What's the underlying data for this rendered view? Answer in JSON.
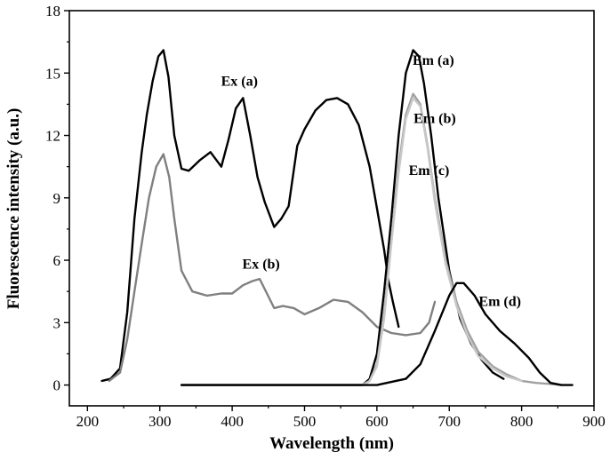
{
  "chart_data": {
    "type": "line",
    "xlabel": "Wavelength (nm)",
    "ylabel": "Fluorescence intensity (a.u.)",
    "xlim": [
      175,
      900
    ],
    "ylim": [
      -1,
      18
    ],
    "xticks": [
      "200",
      "300",
      "400",
      "500",
      "600",
      "700",
      "800",
      "900"
    ],
    "yticks": [
      "0",
      "3",
      "6",
      "9",
      "12",
      "15",
      "18"
    ],
    "grid": false,
    "legend": "none",
    "annotations": [
      {
        "id": "ex-a",
        "text": "Ex (a)",
        "x": 410,
        "y": 14.4
      },
      {
        "id": "ex-b",
        "text": "Ex (b)",
        "x": 440,
        "y": 5.6
      },
      {
        "id": "em-a",
        "text": "Em (a)",
        "x": 678,
        "y": 15.4
      },
      {
        "id": "em-b",
        "text": "Em (b)",
        "x": 680,
        "y": 12.6
      },
      {
        "id": "em-c",
        "text": "Em (c)",
        "x": 672,
        "y": 10.1
      },
      {
        "id": "em-d",
        "text": "Em (d)",
        "x": 770,
        "y": 3.8
      }
    ],
    "series": [
      {
        "name": "Ex (a)",
        "color": "#000000",
        "x": [
          220,
          232,
          245,
          255,
          265,
          275,
          282,
          290,
          298,
          305,
          312,
          320,
          330,
          340,
          355,
          370,
          385,
          395,
          405,
          415,
          425,
          435,
          445,
          458,
          468,
          478,
          490,
          500,
          515,
          530,
          545,
          560,
          575,
          590,
          600,
          610,
          616,
          622,
          630
        ],
        "y": [
          0.2,
          0.3,
          0.8,
          3.5,
          8.0,
          11.2,
          13.0,
          14.6,
          15.8,
          16.1,
          14.8,
          12.0,
          10.4,
          10.3,
          10.8,
          11.2,
          10.5,
          11.8,
          13.3,
          13.8,
          12.0,
          10.0,
          8.8,
          7.6,
          8.0,
          8.6,
          11.5,
          12.3,
          13.2,
          13.7,
          13.8,
          13.5,
          12.5,
          10.5,
          8.5,
          6.5,
          5.0,
          4.0,
          2.8
        ]
      },
      {
        "name": "Ex (b)",
        "color": "#808080",
        "x": [
          230,
          245,
          255,
          265,
          275,
          285,
          295,
          305,
          313,
          320,
          330,
          345,
          365,
          385,
          400,
          415,
          428,
          438,
          448,
          458,
          470,
          485,
          500,
          520,
          540,
          560,
          580,
          600,
          620,
          640,
          660,
          672,
          680
        ],
        "y": [
          0.2,
          0.6,
          2.2,
          4.5,
          6.8,
          9.0,
          10.5,
          11.1,
          10.0,
          8.0,
          5.5,
          4.5,
          4.3,
          4.4,
          4.4,
          4.8,
          5.0,
          5.1,
          4.4,
          3.7,
          3.8,
          3.7,
          3.4,
          3.7,
          4.1,
          4.0,
          3.5,
          2.8,
          2.5,
          2.4,
          2.5,
          3.0,
          4.0
        ]
      },
      {
        "name": "Em (a)",
        "color": "#000000",
        "x": [
          330,
          580,
          590,
          600,
          610,
          620,
          630,
          640,
          650,
          658,
          665,
          675,
          685,
          700,
          715,
          730,
          745,
          760,
          775
        ],
        "y": [
          0,
          0,
          0.3,
          1.5,
          4.5,
          8.0,
          12.0,
          15.0,
          16.1,
          15.8,
          14.5,
          12.0,
          9.0,
          5.5,
          3.2,
          2.0,
          1.2,
          0.6,
          0.3
        ]
      },
      {
        "name": "Em (b)",
        "color": "#a0a0a0",
        "x": [
          330,
          580,
          590,
          600,
          610,
          620,
          630,
          640,
          650,
          660,
          670,
          680,
          695,
          710,
          725,
          740,
          760,
          780,
          800,
          820,
          840,
          855
        ],
        "y": [
          0,
          0,
          0.2,
          1.0,
          3.5,
          7.0,
          10.5,
          13.0,
          14.0,
          13.5,
          11.5,
          9.0,
          6.0,
          4.0,
          2.6,
          1.6,
          0.9,
          0.5,
          0.2,
          0.1,
          0.05,
          0
        ]
      },
      {
        "name": "Em (c)",
        "color": "#c8c8c8",
        "x": [
          580,
          590,
          600,
          610,
          620,
          630,
          640,
          650,
          660,
          670,
          680,
          695,
          710,
          725,
          740,
          760,
          780,
          800
        ],
        "y": [
          0,
          0.2,
          0.9,
          3.2,
          6.8,
          10.2,
          12.8,
          13.8,
          13.4,
          11.4,
          8.8,
          5.8,
          3.8,
          2.4,
          1.4,
          0.8,
          0.4,
          0.2
        ]
      },
      {
        "name": "Em (d)",
        "color": "#000000",
        "x": [
          330,
          600,
          640,
          660,
          680,
          700,
          710,
          720,
          735,
          750,
          770,
          790,
          810,
          825,
          840,
          855,
          870
        ],
        "y": [
          0,
          0,
          0.3,
          1.0,
          2.6,
          4.3,
          4.9,
          4.9,
          4.3,
          3.4,
          2.6,
          2.0,
          1.3,
          0.6,
          0.1,
          0,
          0
        ]
      }
    ]
  }
}
